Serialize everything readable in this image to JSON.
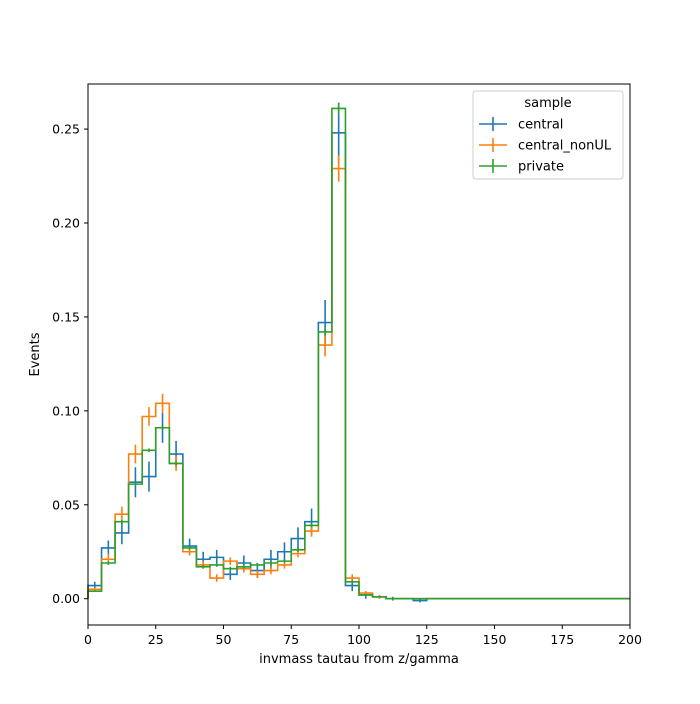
{
  "chart_data": {
    "type": "histogram",
    "xlabel": "invmass tautau from z/gamma",
    "ylabel": "Events",
    "xlim": [
      0,
      200
    ],
    "ylim": [
      -0.014,
      0.274
    ],
    "xticks": [
      0,
      25,
      50,
      75,
      100,
      125,
      150,
      175,
      200
    ],
    "yticks": [
      0.0,
      0.05,
      0.1,
      0.15,
      0.2,
      0.25
    ],
    "xtick_labels": [
      "0",
      "25",
      "50",
      "75",
      "100",
      "125",
      "150",
      "175",
      "200"
    ],
    "ytick_labels": [
      "0.00",
      "0.05",
      "0.10",
      "0.15",
      "0.20",
      "0.25"
    ],
    "legend": {
      "title": "sample",
      "placement": "upper-right"
    },
    "bin_edges": [
      0,
      5,
      10,
      15,
      20,
      25,
      30,
      35,
      40,
      45,
      50,
      55,
      60,
      65,
      70,
      75,
      80,
      85,
      90,
      95,
      100,
      105,
      110,
      115,
      120,
      125,
      130,
      135,
      140,
      145,
      150,
      155,
      160,
      165,
      170,
      175,
      180,
      185,
      190,
      195,
      200
    ],
    "series": [
      {
        "name": "central",
        "color": "#1f77b4",
        "values": [
          0.007,
          0.027,
          0.035,
          0.062,
          0.065,
          0.091,
          0.077,
          0.028,
          0.021,
          0.022,
          0.013,
          0.019,
          0.015,
          0.021,
          0.025,
          0.032,
          0.041,
          0.147,
          0.248,
          0.007,
          0.002,
          0.001,
          0.0,
          0.0,
          -0.001,
          0.0,
          0.0,
          0.0,
          0.0,
          0.0,
          0.0,
          0.0,
          0.0,
          0.0,
          0.0,
          0.0,
          0.0,
          0.0,
          0.0,
          0.0
        ],
        "errors": [
          0.002,
          0.004,
          0.006,
          0.008,
          0.008,
          0.008,
          0.007,
          0.004,
          0.004,
          0.004,
          0.003,
          0.004,
          0.004,
          0.005,
          0.005,
          0.006,
          0.007,
          0.012,
          0.016,
          0.003,
          0.002,
          0.001,
          0.001,
          0.0,
          0.001,
          0.0,
          0.0,
          0.0,
          0.0,
          0.0,
          0.0,
          0.0,
          0.0,
          0.0,
          0.0,
          0.0,
          0.0,
          0.0,
          0.0,
          0.0
        ]
      },
      {
        "name": "central_nonUL",
        "color": "#ff7f0e",
        "values": [
          0.005,
          0.021,
          0.045,
          0.077,
          0.097,
          0.104,
          0.072,
          0.025,
          0.018,
          0.011,
          0.02,
          0.016,
          0.013,
          0.015,
          0.018,
          0.024,
          0.036,
          0.135,
          0.229,
          0.011,
          0.003,
          0.001,
          0.0,
          0.0,
          0.0,
          0.0,
          0.0,
          0.0,
          0.0,
          0.0,
          0.0,
          0.0,
          0.0,
          0.0,
          0.0,
          0.0,
          0.0,
          0.0,
          0.0,
          0.0
        ],
        "errors": [
          0.001,
          0.003,
          0.004,
          0.005,
          0.005,
          0.005,
          0.004,
          0.002,
          0.002,
          0.002,
          0.002,
          0.002,
          0.002,
          0.002,
          0.002,
          0.002,
          0.003,
          0.006,
          0.007,
          0.002,
          0.001,
          0.001,
          0.0,
          0.0,
          0.0,
          0.0,
          0.0,
          0.0,
          0.0,
          0.0,
          0.0,
          0.0,
          0.0,
          0.0,
          0.0,
          0.0,
          0.0,
          0.0,
          0.0,
          0.0
        ]
      },
      {
        "name": "private",
        "color": "#2ca02c",
        "values": [
          0.004,
          0.019,
          0.041,
          0.061,
          0.079,
          0.091,
          0.072,
          0.027,
          0.017,
          0.018,
          0.016,
          0.017,
          0.018,
          0.019,
          0.02,
          0.026,
          0.039,
          0.142,
          0.261,
          0.009,
          0.002,
          0.001,
          0.0,
          0.0,
          0.0,
          0.0,
          0.0,
          0.0,
          0.0,
          0.0,
          0.0,
          0.0,
          0.0,
          0.0,
          0.0,
          0.0,
          0.0,
          0.0,
          0.0,
          0.0
        ],
        "errors": [
          0.0,
          0.001,
          0.001,
          0.001,
          0.001,
          0.001,
          0.001,
          0.001,
          0.001,
          0.001,
          0.001,
          0.001,
          0.001,
          0.001,
          0.001,
          0.001,
          0.001,
          0.002,
          0.003,
          0.001,
          0.0,
          0.0,
          0.0,
          0.0,
          0.0,
          0.0,
          0.0,
          0.0,
          0.0,
          0.0,
          0.0,
          0.0,
          0.0,
          0.0,
          0.0,
          0.0,
          0.0,
          0.0,
          0.0,
          0.0
        ]
      }
    ]
  }
}
